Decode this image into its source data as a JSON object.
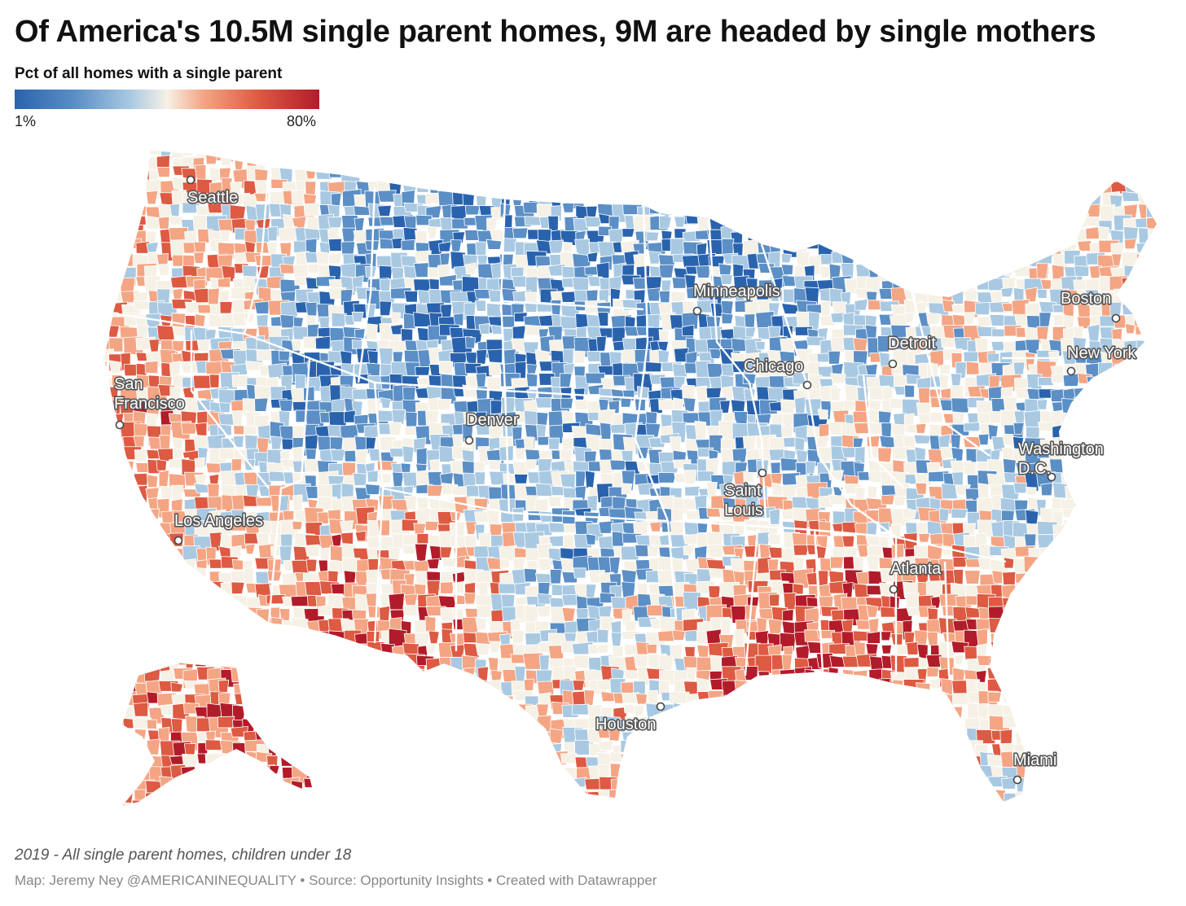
{
  "header": {
    "title": "Of America's 10.5M single parent homes, 9M are headed by single mothers"
  },
  "legend": {
    "title": "Pct of all homes with a single parent",
    "min_label": "1%",
    "max_label": "80%",
    "scale": {
      "min": 1,
      "max": 80,
      "colors": [
        "#2a63ad",
        "#5b8fc6",
        "#a9c9e2",
        "#f6f1e6",
        "#f4a584",
        "#dd5a43",
        "#b21c2a"
      ]
    }
  },
  "map": {
    "type": "choropleth",
    "region": "United States counties",
    "cities": [
      {
        "id": "seattle",
        "label": "Seattle"
      },
      {
        "id": "san-francisco",
        "label_lines": [
          "San",
          "Francisco"
        ]
      },
      {
        "id": "los-angeles",
        "label": "Los Angeles"
      },
      {
        "id": "denver",
        "label": "Denver"
      },
      {
        "id": "minneapolis",
        "label": "Minneapolis"
      },
      {
        "id": "chicago",
        "label": "Chicago"
      },
      {
        "id": "detroit",
        "label": "Detroit"
      },
      {
        "id": "saint-louis",
        "label_lines": [
          "Saint",
          "Louis"
        ]
      },
      {
        "id": "boston",
        "label": "Boston"
      },
      {
        "id": "new-york",
        "label": "New York"
      },
      {
        "id": "washington-dc",
        "label_lines": [
          "Washington",
          "D.C."
        ]
      },
      {
        "id": "atlanta",
        "label": "Atlanta"
      },
      {
        "id": "houston",
        "label": "Houston"
      },
      {
        "id": "miami",
        "label": "Miami"
      }
    ]
  },
  "footer": {
    "notes": "2019 - All single parent homes, children under 18",
    "credit": "Map: Jeremy Ney @AMERICANINEQUALITY • Source: Opportunity Insights • Created with Datawrapper"
  }
}
